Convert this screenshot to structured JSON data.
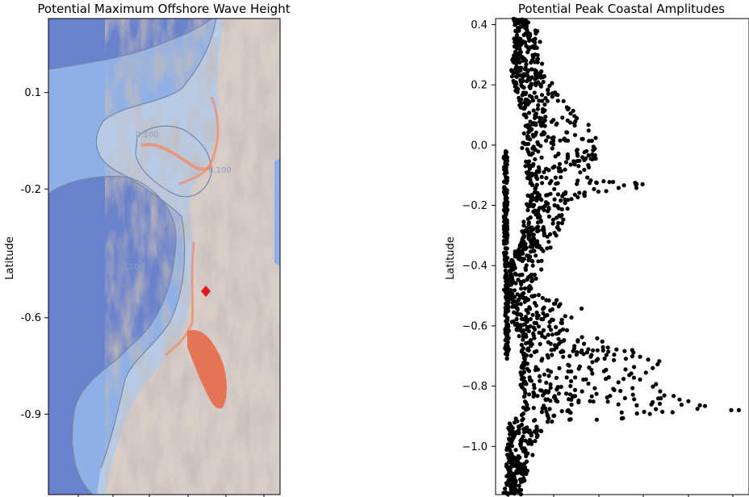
{
  "chart_data": [
    {
      "type": "map",
      "title": "Potential Maximum Offshore Wave Height",
      "ylabel": "Latitude",
      "ylim": [
        -1.15,
        0.33
      ],
      "yticks": [
        {
          "value": 0.1,
          "label": "0.1"
        },
        {
          "value": -0.2,
          "label": "-0.2"
        },
        {
          "value": -0.6,
          "label": "-0.6"
        },
        {
          "value": -0.9,
          "label": "-0.9"
        }
      ],
      "contour_labels": [
        "0.100",
        "0.100",
        "0.100"
      ],
      "epicenter_marker": {
        "latitude": -0.545,
        "color": "#e8161b"
      },
      "colors": {
        "deep_sea": "#6a82cc",
        "mid_sea": "#8fb0e6",
        "shallow_sea": "#b8cbe6",
        "land": "#d9cdc8",
        "inundation": "#e76a4a"
      }
    },
    {
      "type": "scatter",
      "title": "Potential Peak Coastal Amplitudes",
      "ylabel": "Latitude",
      "ylim": [
        -1.16,
        0.42
      ],
      "yticks": [
        {
          "value": 0.4,
          "label": "0.4"
        },
        {
          "value": 0.2,
          "label": "0.2"
        },
        {
          "value": 0.0,
          "label": "0.0"
        },
        {
          "value": -0.2,
          "label": "−0.2"
        },
        {
          "value": -0.4,
          "label": "−0.4"
        },
        {
          "value": -0.6,
          "label": "−0.6"
        },
        {
          "value": -0.8,
          "label": "−0.8"
        },
        {
          "value": -1.0,
          "label": "−1.0"
        }
      ],
      "xlim": [
        0,
        1
      ],
      "profile": [
        {
          "lat": 0.42,
          "base": 0.08,
          "spread": 0.07
        },
        {
          "lat": 0.32,
          "base": 0.08,
          "spread": 0.1
        },
        {
          "lat": 0.25,
          "base": 0.07,
          "spread": 0.12
        },
        {
          "lat": 0.18,
          "base": 0.08,
          "spread": 0.16
        },
        {
          "lat": 0.12,
          "base": 0.11,
          "spread": 0.2
        },
        {
          "lat": 0.05,
          "base": 0.12,
          "spread": 0.26
        },
        {
          "lat": -0.02,
          "base": 0.11,
          "spread": 0.3
        },
        {
          "lat": -0.1,
          "base": 0.13,
          "spread": 0.26
        },
        {
          "lat": -0.13,
          "base": 0.14,
          "spread": 0.52
        },
        {
          "lat": -0.18,
          "base": 0.13,
          "spread": 0.18
        },
        {
          "lat": -0.25,
          "base": 0.12,
          "spread": 0.16
        },
        {
          "lat": -0.32,
          "base": 0.1,
          "spread": 0.12
        },
        {
          "lat": -0.4,
          "base": 0.06,
          "spread": 0.12
        },
        {
          "lat": -0.48,
          "base": 0.04,
          "spread": 0.1
        },
        {
          "lat": -0.55,
          "base": 0.08,
          "spread": 0.28
        },
        {
          "lat": -0.6,
          "base": 0.07,
          "spread": 0.18
        },
        {
          "lat": -0.66,
          "base": 0.11,
          "spread": 0.38
        },
        {
          "lat": -0.72,
          "base": 0.11,
          "spread": 0.56
        },
        {
          "lat": -0.78,
          "base": 0.1,
          "spread": 0.52
        },
        {
          "lat": -0.84,
          "base": 0.12,
          "spread": 0.6
        },
        {
          "lat": -0.88,
          "base": 0.1,
          "spread": 0.8
        },
        {
          "lat": -0.93,
          "base": 0.06,
          "spread": 0.14
        },
        {
          "lat": -1.0,
          "base": 0.05,
          "spread": 0.1
        },
        {
          "lat": -1.08,
          "base": 0.05,
          "spread": 0.08
        },
        {
          "lat": -1.16,
          "base": 0.04,
          "spread": 0.06
        }
      ],
      "outliers": [
        {
          "lat": -0.88,
          "x": 0.96
        },
        {
          "lat": -0.88,
          "x": 0.93
        },
        {
          "lat": -0.13,
          "x": 0.58
        }
      ],
      "marker_color": "#000000"
    }
  ]
}
